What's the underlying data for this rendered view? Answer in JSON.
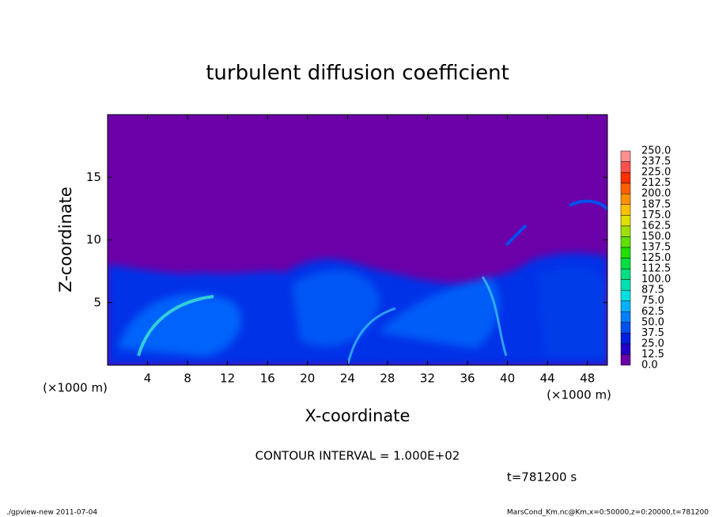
{
  "chart_data": {
    "type": "contour",
    "title": "turbulent diffusion coefficient",
    "xlabel": "X-coordinate",
    "ylabel": "Z-coordinate",
    "x_unit": "(×1000 m)",
    "xlim": [
      0,
      50
    ],
    "xticks": [
      4,
      8,
      12,
      16,
      20,
      24,
      28,
      32,
      36,
      40,
      44,
      48
    ],
    "ylim": [
      0,
      20
    ],
    "yticks": [
      5,
      10,
      15
    ],
    "levels": [
      {
        "value": 0,
        "label": "0.0"
      },
      {
        "value": 12.5,
        "label": "12.5"
      },
      {
        "value": 25,
        "label": "25.0"
      },
      {
        "value": 37.5,
        "label": "37.5"
      },
      {
        "value": 50,
        "label": "50.0"
      },
      {
        "value": 62.5,
        "label": "62.5"
      },
      {
        "value": 75,
        "label": "75.0"
      },
      {
        "value": 87.5,
        "label": "87.5"
      },
      {
        "value": 100,
        "label": "100.0"
      },
      {
        "value": 112.5,
        "label": "112.5"
      },
      {
        "value": 125,
        "label": "125.0"
      },
      {
        "value": 137.5,
        "label": "137.5"
      },
      {
        "value": 150,
        "label": "150.0"
      },
      {
        "value": 162.5,
        "label": "162.5"
      },
      {
        "value": 175,
        "label": "175.0"
      },
      {
        "value": 187.5,
        "label": "187.5"
      },
      {
        "value": 200,
        "label": "200.0"
      },
      {
        "value": 212.5,
        "label": "212.5"
      },
      {
        "value": 225,
        "label": "225.0"
      },
      {
        "value": 237.5,
        "label": "237.5"
      },
      {
        "value": 250,
        "label": "250.0"
      }
    ],
    "colors": [
      "#6b00a8",
      "#2200c8",
      "#0020e0",
      "#0050f0",
      "#0080ff",
      "#00b0ff",
      "#00e0e0",
      "#00e0b0",
      "#00e080",
      "#00e040",
      "#20e000",
      "#60e000",
      "#a0e000",
      "#e0e000",
      "#ffc000",
      "#ff9000",
      "#ff6000",
      "#ff3000",
      "#ff5050",
      "#ff9090"
    ],
    "contour_interval": "CONTOUR INTERVAL = 1.000E+02",
    "time_label": "t=781200 s",
    "footer_left": "./gpview-new  2011-07-04",
    "footer_right": "MarsCond_Km.nc@Km,x=0:50000,z=0:20000,t=781200"
  }
}
